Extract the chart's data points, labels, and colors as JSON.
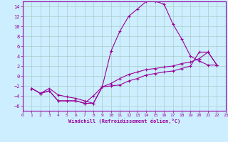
{
  "xlabel": "Windchill (Refroidissement éolien,°C)",
  "bg_color": "#cceeff",
  "grid_color": "#aacccc",
  "line_color": "#990099",
  "marker": "+",
  "xlim": [
    0,
    23
  ],
  "ylim": [
    -7,
    15
  ],
  "xticks": [
    0,
    1,
    2,
    3,
    4,
    5,
    6,
    7,
    8,
    9,
    10,
    11,
    12,
    13,
    14,
    15,
    16,
    17,
    18,
    19,
    20,
    21,
    22,
    23
  ],
  "yticks": [
    -6,
    -4,
    -2,
    0,
    2,
    4,
    6,
    8,
    10,
    12,
    14
  ],
  "series1_x": [
    1,
    2,
    3,
    4,
    5,
    6,
    7,
    8,
    9,
    10,
    11,
    12,
    13,
    14,
    15,
    16,
    17,
    18,
    19,
    20,
    21,
    22
  ],
  "series1_y": [
    -2.5,
    -3.5,
    -3.0,
    -5.0,
    -5.0,
    -5.0,
    -5.5,
    -5.5,
    -2.2,
    -2.0,
    -1.8,
    -1.0,
    -0.5,
    0.2,
    0.5,
    0.8,
    1.0,
    1.5,
    2.0,
    4.8,
    4.8,
    2.2
  ],
  "series2_x": [
    1,
    2,
    3,
    4,
    5,
    6,
    7,
    8,
    9,
    10,
    11,
    12,
    13,
    14,
    15,
    16,
    17,
    18,
    19,
    20,
    21,
    22
  ],
  "series2_y": [
    -2.5,
    -3.5,
    -3.0,
    -5.0,
    -5.0,
    -5.0,
    -5.5,
    -4.0,
    -2.2,
    5.0,
    9.0,
    12.0,
    13.5,
    15.0,
    15.0,
    14.5,
    10.5,
    7.5,
    4.0,
    3.0,
    2.2,
    2.2
  ],
  "series3_x": [
    1,
    2,
    3,
    4,
    5,
    6,
    7,
    8,
    9,
    10,
    11,
    12,
    13,
    14,
    15,
    16,
    17,
    18,
    19,
    20,
    21,
    22
  ],
  "series3_y": [
    -2.5,
    -3.5,
    -2.5,
    -3.8,
    -4.2,
    -4.5,
    -5.0,
    -5.5,
    -2.2,
    -1.5,
    -0.5,
    0.3,
    0.8,
    1.3,
    1.5,
    1.8,
    2.0,
    2.5,
    2.8,
    3.5,
    4.8,
    2.2
  ]
}
